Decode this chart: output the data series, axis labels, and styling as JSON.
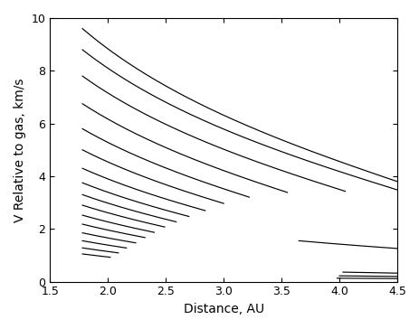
{
  "title": "",
  "xlabel": "Distance, AU",
  "ylabel": "V Relative to gas, km/s",
  "xlim": [
    1.5,
    4.5
  ],
  "ylim": [
    0,
    10
  ],
  "xticks": [
    1.5,
    2.0,
    2.5,
    3.0,
    3.5,
    4.0,
    4.5
  ],
  "yticks": [
    0,
    2,
    4,
    6,
    8,
    10
  ],
  "background_color": "#ffffff",
  "line_color": "#000000",
  "xlabel_fontsize": 10,
  "ylabel_fontsize": 10,
  "tick_fontsize": 9,
  "curves_main": [
    {
      "q": 1.78,
      "Q": 2.02,
      "v_scale": 1.05
    },
    {
      "q": 1.78,
      "Q": 2.09,
      "v_scale": 1.28
    },
    {
      "q": 1.78,
      "Q": 2.16,
      "v_scale": 1.55
    },
    {
      "q": 1.78,
      "Q": 2.24,
      "v_scale": 1.85
    },
    {
      "q": 1.78,
      "Q": 2.32,
      "v_scale": 2.18
    },
    {
      "q": 1.78,
      "Q": 2.4,
      "v_scale": 2.52
    },
    {
      "q": 1.78,
      "Q": 2.49,
      "v_scale": 2.9
    },
    {
      "q": 1.78,
      "Q": 2.59,
      "v_scale": 3.3
    },
    {
      "q": 1.78,
      "Q": 2.7,
      "v_scale": 3.75
    },
    {
      "q": 1.78,
      "Q": 2.84,
      "v_scale": 4.3
    },
    {
      "q": 1.78,
      "Q": 3.0,
      "v_scale": 5.0
    },
    {
      "q": 1.78,
      "Q": 3.22,
      "v_scale": 5.8
    },
    {
      "q": 1.78,
      "Q": 3.55,
      "v_scale": 6.75
    },
    {
      "q": 1.78,
      "Q": 4.05,
      "v_scale": 7.8
    },
    {
      "q": 1.78,
      "Q": 4.5,
      "v_scale": 8.8
    },
    {
      "q": 1.78,
      "Q": 4.5,
      "v_scale": 9.6
    }
  ],
  "curves_small": [
    {
      "q": 3.98,
      "Q": 4.5,
      "v_scale": 0.13
    },
    {
      "q": 4.0,
      "Q": 4.5,
      "v_scale": 0.22
    },
    {
      "q": 4.03,
      "Q": 4.5,
      "v_scale": 0.36
    },
    {
      "q": 3.65,
      "Q": 4.5,
      "v_scale": 1.55
    }
  ]
}
